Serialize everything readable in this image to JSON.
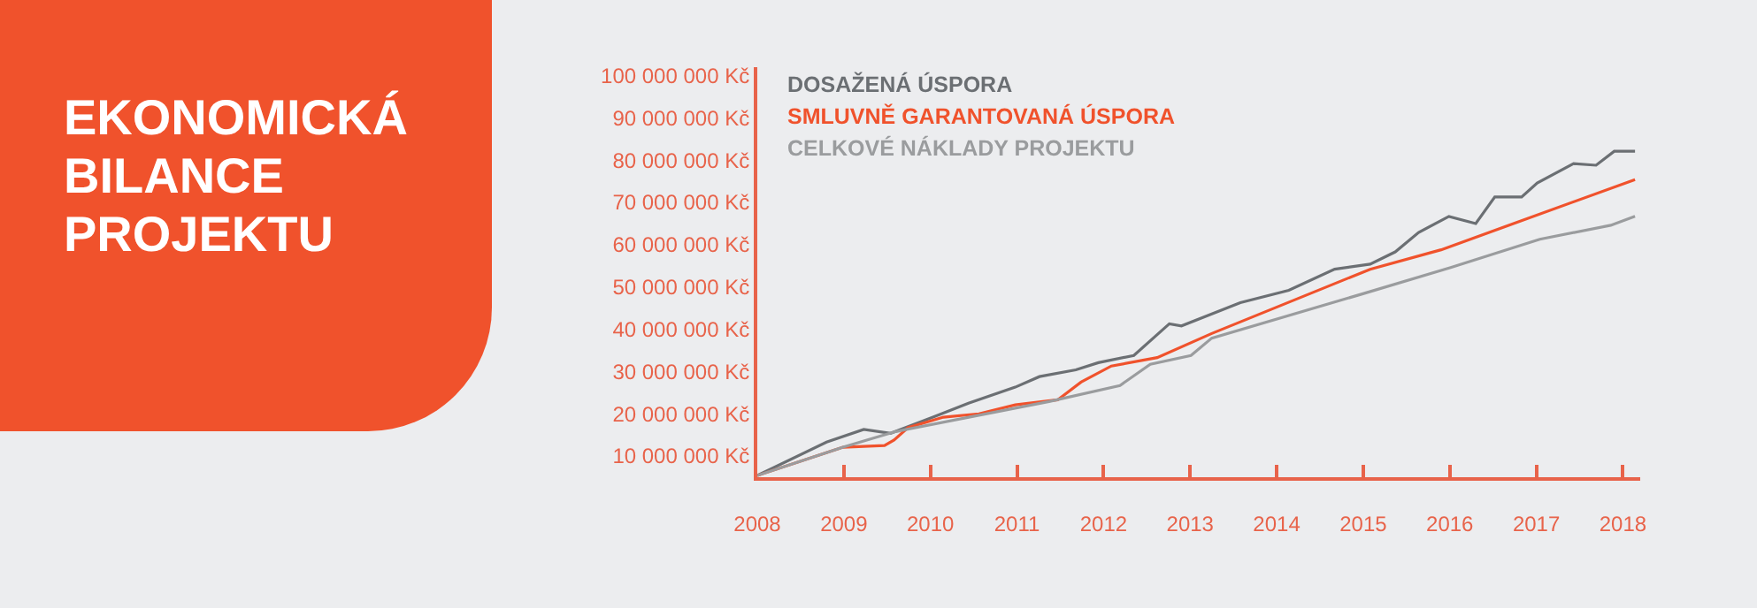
{
  "chart_data": {
    "type": "line",
    "title": "EKONOMICKÁ BILANCE PROJEKTU",
    "legend": "top left",
    "marker": "none",
    "line_style": "solid",
    "xlim": [
      2008,
      2018.2
    ],
    "xticks": [
      2008,
      2009,
      2010,
      2011,
      2012,
      2013,
      2014,
      2015,
      2016,
      2017,
      2018
    ],
    "ylim": [
      5000000,
      102000000
    ],
    "yticks": [
      {
        "value": 10000000,
        "label": "10 000 000 Kč"
      },
      {
        "value": 20000000,
        "label": "20 000 000 Kč"
      },
      {
        "value": 30000000,
        "label": "30 000 000 Kč"
      },
      {
        "value": 40000000,
        "label": "40 000 000 Kč"
      },
      {
        "value": 50000000,
        "label": "50 000 000 Kč"
      },
      {
        "value": 60000000,
        "label": "60 000 000 Kč"
      },
      {
        "value": 70000000,
        "label": "70 000 000 Kč"
      },
      {
        "value": 80000000,
        "label": "80 000 000 Kč"
      },
      {
        "value": 90000000,
        "label": "90 000 000 Kč"
      },
      {
        "value": 100000000,
        "label": "100 000 000 Kč"
      }
    ],
    "series": [
      {
        "name": "DOSAŽENÁ ÚSPORA",
        "color": "#6b6f73",
        "x": [
          2008,
          2008.8,
          2009.23,
          2009.54,
          2010.03,
          2010.44,
          2010.98,
          2011.26,
          2011.68,
          2011.94,
          2012.35,
          2012.76,
          2012.9,
          2013.58,
          2014.14,
          2014.67,
          2015.08,
          2015.37,
          2015.64,
          2015.99,
          2016.3,
          2016.52,
          2016.83,
          2017.01,
          2017.43,
          2017.69,
          2017.9,
          2018.14
        ],
        "values": [
          5400000,
          13300000,
          16300000,
          15400000,
          19200000,
          22500000,
          26300000,
          28800000,
          30400000,
          32100000,
          33800000,
          41300000,
          40800000,
          46300000,
          49200000,
          54200000,
          55400000,
          58300000,
          62900000,
          66700000,
          65000000,
          71300000,
          71300000,
          74600000,
          79200000,
          78800000,
          82100000,
          82100000
        ]
      },
      {
        "name": "SMLUVNĚ GARANTOVANÁ ÚSPORA",
        "color": "#f0522c",
        "x": [
          2008,
          2008.99,
          2009.47,
          2009.58,
          2009.74,
          2010.15,
          2010.56,
          2010.98,
          2011.47,
          2011.74,
          2012.09,
          2012.62,
          2013.25,
          2015.08,
          2015.9,
          2018.14
        ],
        "values": [
          5400000,
          12100000,
          12500000,
          13800000,
          16700000,
          19200000,
          20000000,
          22100000,
          23300000,
          27500000,
          31300000,
          33300000,
          39000000,
          54200000,
          58800000,
          75400000
        ]
      },
      {
        "name": "CELKOVÉ NÁKLADY PROJEKTU",
        "color": "#9a9c9e",
        "x": [
          2008,
          2008.99,
          2009.6,
          2011.37,
          2012.19,
          2012.54,
          2013.01,
          2013.25,
          2014.98,
          2016.01,
          2017.04,
          2017.86,
          2018.14
        ],
        "values": [
          5400000,
          12100000,
          15800000,
          22900000,
          26700000,
          31700000,
          33800000,
          37900000,
          48300000,
          54600000,
          61300000,
          64600000,
          66700000
        ]
      }
    ]
  }
}
